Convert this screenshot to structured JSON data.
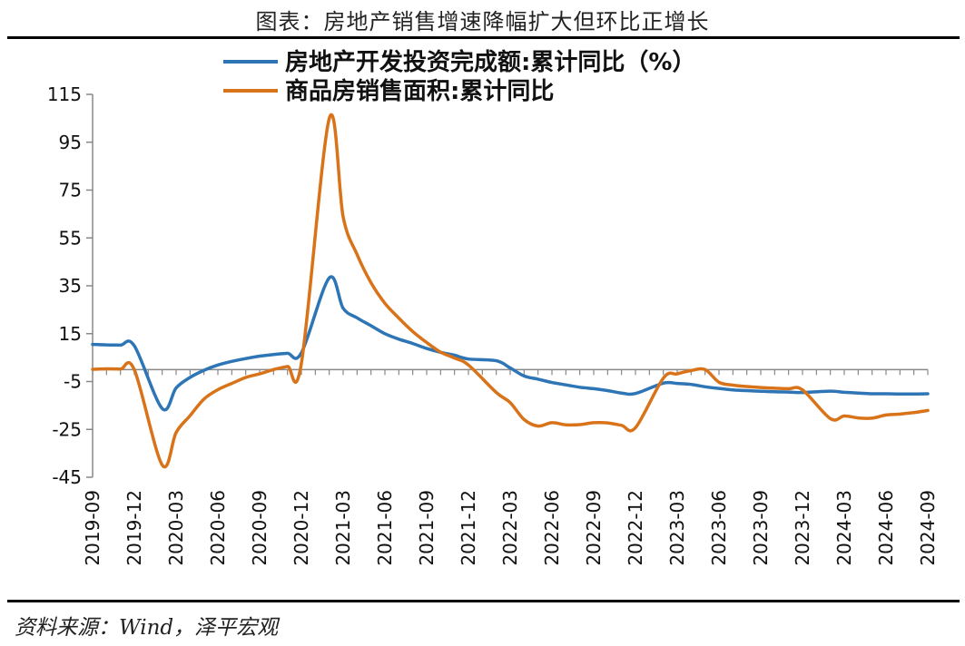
{
  "title": "图表：房地产销售增速降幅扩大但环比正增长",
  "source": "资料来源：Wind，泽平宏观",
  "chart_data": {
    "type": "line",
    "title": "",
    "xlabel": "",
    "ylabel": "",
    "ylim": [
      -45,
      115
    ],
    "yticks": [
      115,
      95,
      75,
      55,
      35,
      15,
      -5,
      -25,
      -45
    ],
    "grid": false,
    "legend_position": "top-left",
    "x": [
      "2019-09",
      "2019-10",
      "2019-11",
      "2019-12",
      "2020-01",
      "2020-02",
      "2020-03",
      "2020-04",
      "2020-05",
      "2020-06",
      "2020-07",
      "2020-08",
      "2020-09",
      "2020-10",
      "2020-11",
      "2020-12",
      "2021-01",
      "2021-02",
      "2021-03",
      "2021-04",
      "2021-05",
      "2021-06",
      "2021-07",
      "2021-08",
      "2021-09",
      "2021-10",
      "2021-11",
      "2021-12",
      "2022-01",
      "2022-02",
      "2022-03",
      "2022-04",
      "2022-05",
      "2022-06",
      "2022-07",
      "2022-08",
      "2022-09",
      "2022-10",
      "2022-11",
      "2022-12",
      "2023-01",
      "2023-02",
      "2023-03",
      "2023-04",
      "2023-05",
      "2023-06",
      "2023-07",
      "2023-08",
      "2023-09",
      "2023-10",
      "2023-11",
      "2023-12",
      "2024-01",
      "2024-02",
      "2024-03",
      "2024-04",
      "2024-05",
      "2024-06",
      "2024-07",
      "2024-08",
      "2024-09"
    ],
    "xticks": [
      "2019-09",
      "2019-12",
      "2020-03",
      "2020-06",
      "2020-09",
      "2020-12",
      "2021-03",
      "2021-06",
      "2021-09",
      "2021-12",
      "2022-03",
      "2022-06",
      "2022-09",
      "2022-12",
      "2023-03",
      "2023-06",
      "2023-09",
      "2023-12",
      "2024-03",
      "2024-06",
      "2024-09"
    ],
    "series": [
      {
        "name": "房地产开发投资完成额:累计同比（%）",
        "color": "#2E75B6",
        "values": [
          10.5,
          10.3,
          10.2,
          9.9,
          null,
          -16.3,
          -7.7,
          -3.3,
          -0.3,
          1.9,
          3.4,
          4.6,
          5.6,
          6.3,
          6.8,
          7.0,
          null,
          38.3,
          25.6,
          21.6,
          18.3,
          15.0,
          12.7,
          10.9,
          8.8,
          7.2,
          6.0,
          4.4,
          null,
          3.7,
          0.7,
          -2.7,
          -4.0,
          -5.4,
          -6.4,
          -7.4,
          -8.0,
          -8.8,
          -9.8,
          -10.0,
          null,
          -5.7,
          -5.8,
          -6.2,
          -7.2,
          -7.9,
          -8.5,
          -8.8,
          -9.1,
          -9.3,
          -9.4,
          -9.6,
          null,
          -9.0,
          -9.5,
          -9.8,
          -10.1,
          -10.1,
          -10.2,
          -10.2,
          -10.1
        ]
      },
      {
        "name": "商品房销售面积:累计同比",
        "color": "#D9731A",
        "values": [
          0.1,
          0.3,
          0.2,
          -0.1,
          null,
          -39.9,
          -26.3,
          -19.3,
          -12.3,
          -8.4,
          -5.8,
          -3.3,
          -1.8,
          0.0,
          1.3,
          2.6,
          null,
          104.9,
          63.8,
          48.1,
          36.3,
          27.7,
          21.5,
          15.9,
          11.3,
          7.3,
          4.8,
          1.9,
          null,
          -9.6,
          -13.8,
          -20.9,
          -23.6,
          -22.2,
          -23.1,
          -23.0,
          -22.2,
          -22.3,
          -23.3,
          -24.3,
          null,
          -3.6,
          -1.8,
          -0.4,
          0.0,
          -5.3,
          -6.5,
          -7.1,
          -7.5,
          -7.8,
          -8.0,
          -8.5,
          null,
          -20.5,
          -19.4,
          -20.2,
          -20.3,
          -19.0,
          -18.6,
          -18.0,
          -17.1
        ]
      }
    ]
  }
}
